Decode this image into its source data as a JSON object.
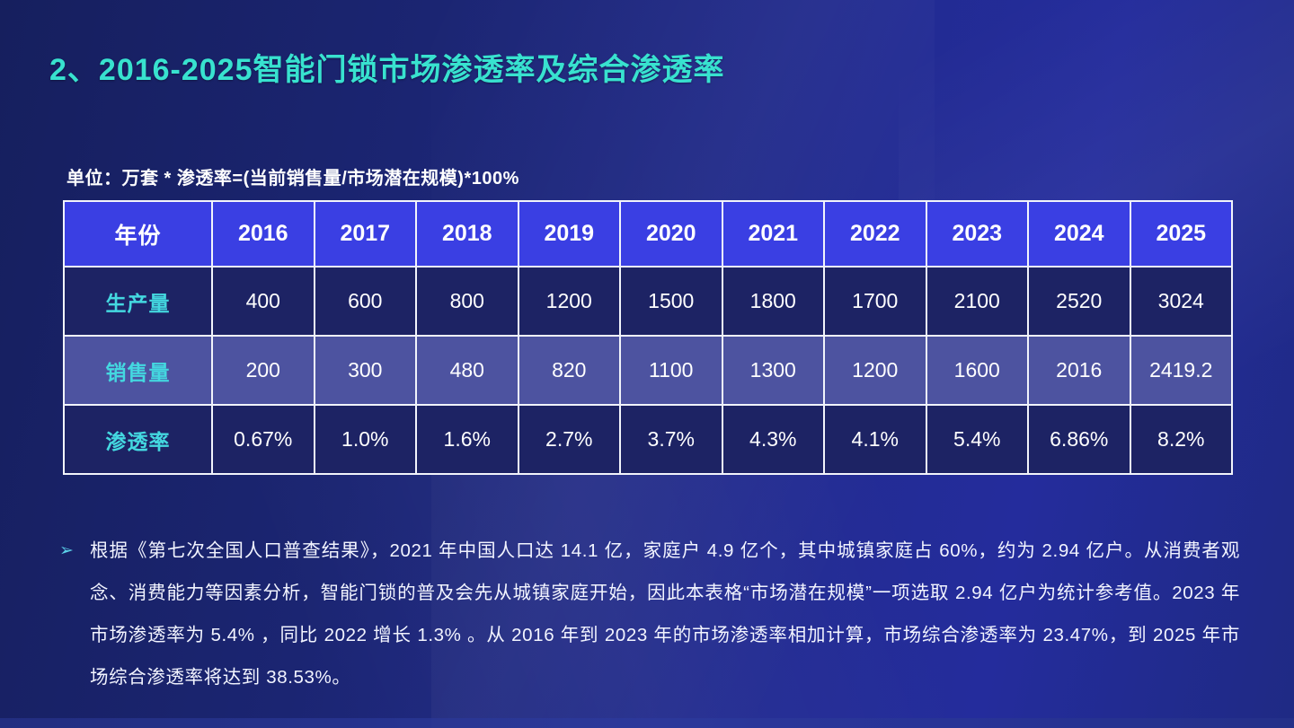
{
  "title": "2、2016-2025智能门锁市场渗透率及综合渗透率",
  "unit_note": "单位：万套    * 渗透率=(当前销售量/市场潜在规模)*100%",
  "colors": {
    "title_accent": "#38e2cf",
    "header_row_bg": "#3a3fe3",
    "dark_row_bg": "#1d2364",
    "mid_row_bg": "#4d53a0",
    "row_label_accent": "#44d8e0",
    "border": "#f2f4fb",
    "background_left": "#161f5e",
    "background_right": "#242c9c",
    "bullet_accent": "#5bd0e8"
  },
  "chart_data": {
    "type": "table",
    "title": "2016-2025智能门锁市场渗透率及综合渗透率",
    "unit": "万套",
    "formula_note": "渗透率=(当前销售量/市场潜在规模)*100%",
    "header_label": "年份",
    "categories": [
      "2016",
      "2017",
      "2018",
      "2019",
      "2020",
      "2021",
      "2022",
      "2023",
      "2024",
      "2025"
    ],
    "series": [
      {
        "name": "生产量",
        "values": [
          "400",
          "600",
          "800",
          "1200",
          "1500",
          "1800",
          "1700",
          "2100",
          "2520",
          "3024"
        ]
      },
      {
        "name": "销售量",
        "values": [
          "200",
          "300",
          "480",
          "820",
          "1100",
          "1300",
          "1200",
          "1600",
          "2016",
          "2419.2"
        ]
      },
      {
        "name": "渗透率",
        "values": [
          "0.67%",
          "1.0%",
          "1.6%",
          "2.7%",
          "3.7%",
          "4.3%",
          "4.1%",
          "5.4%",
          "6.86%",
          "8.2%"
        ]
      }
    ]
  },
  "note": {
    "bullet": "➢",
    "text": "根据《第七次全国人口普查结果》，2021 年中国人口达 14.1 亿，家庭户 4.9 亿个，其中城镇家庭占 60%，约为 2.94 亿户。从消费者观念、消费能力等因素分析，智能门锁的普及会先从城镇家庭开始，因此本表格“市场潜在规模”一项选取 2.94 亿户为统计参考值。2023 年市场渗透率为 5.4% ，同比 2022 增长 1.3% 。从 2016 年到 2023 年的市场渗透率相加计算，市场综合渗透率为 23.47%，到 2025 年市场综合渗透率将达到 38.53%。"
  }
}
